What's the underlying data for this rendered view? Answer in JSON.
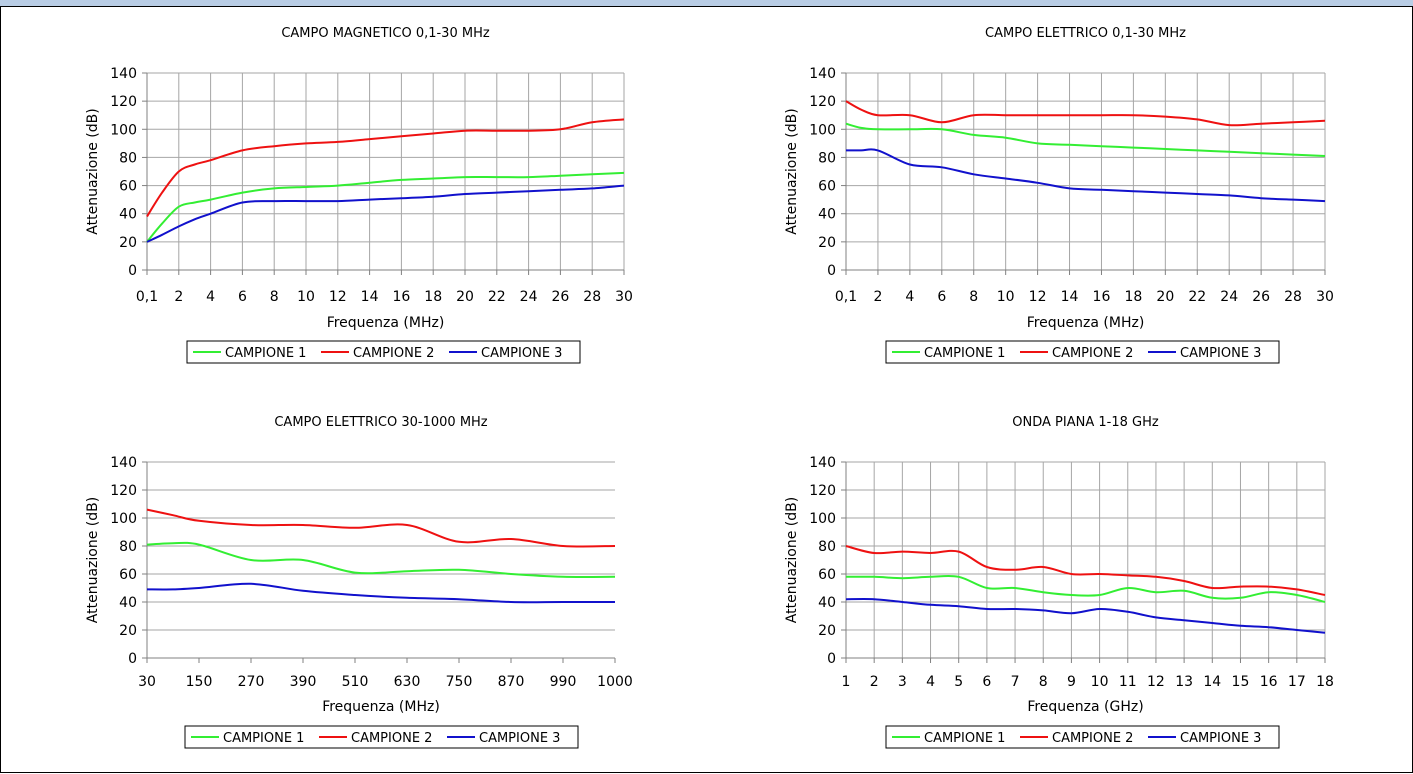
{
  "chart_data": [
    {
      "type": "line",
      "title": "CAMPO MAGNETICO 0,1-30 MHz",
      "xlabel": "Frequenza (MHz)",
      "ylabel": "Attenuazione (dB)",
      "categories": [
        "0,1",
        "2",
        "4",
        "6",
        "8",
        "10",
        "12",
        "14",
        "16",
        "18",
        "20",
        "22",
        "24",
        "26",
        "28",
        "30"
      ],
      "x": [
        0.1,
        1,
        2,
        3,
        4,
        6,
        8,
        10,
        12,
        14,
        16,
        18,
        20,
        22,
        24,
        26,
        28,
        30
      ],
      "ylim": [
        0,
        140
      ],
      "yticks": [
        0,
        20,
        40,
        60,
        80,
        100,
        120,
        140
      ],
      "grid": true,
      "legend": "bottom",
      "series": [
        {
          "name": "CAMPIONE 1",
          "color": "#33ee33",
          "values": [
            20,
            33,
            45,
            48,
            50,
            55,
            58,
            59,
            60,
            62,
            64,
            65,
            66,
            66,
            66,
            67,
            68,
            69
          ]
        },
        {
          "name": "CAMPIONE 2",
          "color": "#ee1111",
          "values": [
            38,
            55,
            70,
            75,
            78,
            85,
            88,
            90,
            91,
            93,
            95,
            97,
            99,
            99,
            99,
            100,
            105,
            107
          ]
        },
        {
          "name": "CAMPIONE 3",
          "color": "#1111cc",
          "values": [
            20,
            25,
            31,
            36,
            40,
            48,
            49,
            49,
            49,
            50,
            51,
            52,
            54,
            55,
            56,
            57,
            58,
            60
          ]
        }
      ]
    },
    {
      "type": "line",
      "title": "CAMPO ELETTRICO 0,1-30 MHz",
      "xlabel": "Frequenza (MHz)",
      "ylabel": "Attenuazione (dB)",
      "categories": [
        "0,1",
        "2",
        "4",
        "6",
        "8",
        "10",
        "12",
        "14",
        "16",
        "18",
        "20",
        "22",
        "24",
        "26",
        "28",
        "30"
      ],
      "x": [
        0.1,
        1,
        2,
        4,
        6,
        8,
        10,
        12,
        14,
        16,
        18,
        20,
        22,
        24,
        26,
        28,
        30
      ],
      "ylim": [
        0,
        140
      ],
      "yticks": [
        0,
        20,
        40,
        60,
        80,
        100,
        120,
        140
      ],
      "grid": true,
      "legend": "bottom",
      "series": [
        {
          "name": "CAMPIONE 1",
          "color": "#33ee33",
          "values": [
            104,
            101,
            100,
            100,
            100,
            96,
            94,
            90,
            89,
            88,
            87,
            86,
            85,
            84,
            83,
            82,
            81
          ]
        },
        {
          "name": "CAMPIONE 2",
          "color": "#ee1111",
          "values": [
            120,
            114,
            110,
            110,
            105,
            110,
            110,
            110,
            110,
            110,
            110,
            109,
            107,
            103,
            104,
            105,
            106
          ]
        },
        {
          "name": "CAMPIONE 3",
          "color": "#1111cc",
          "values": [
            85,
            85,
            85,
            75,
            73,
            68,
            65,
            62,
            58,
            57,
            56,
            55,
            54,
            53,
            51,
            50,
            49
          ]
        }
      ]
    },
    {
      "type": "line",
      "title": "CAMPO ELETTRICO 30-1000 MHz",
      "xlabel": "Frequenza (MHz)",
      "ylabel": "Attenuazione (dB)",
      "categories": [
        "30",
        "150",
        "270",
        "390",
        "510",
        "630",
        "750",
        "870",
        "990",
        "1000"
      ],
      "x": [
        30,
        90,
        150,
        270,
        390,
        510,
        630,
        750,
        870,
        990,
        1000
      ],
      "ylim": [
        0,
        140
      ],
      "yticks": [
        0,
        20,
        40,
        60,
        80,
        100,
        120,
        140
      ],
      "grid": false,
      "legend": "bottom",
      "series": [
        {
          "name": "CAMPIONE 1",
          "color": "#33ee33",
          "values": [
            81,
            82,
            81,
            70,
            70,
            61,
            62,
            63,
            60,
            58,
            58
          ]
        },
        {
          "name": "CAMPIONE 2",
          "color": "#ee1111",
          "values": [
            106,
            102,
            98,
            95,
            95,
            93,
            95,
            83,
            85,
            80,
            80
          ]
        },
        {
          "name": "CAMPIONE 3",
          "color": "#1111cc",
          "values": [
            49,
            49,
            50,
            53,
            48,
            45,
            43,
            42,
            40,
            40,
            40
          ]
        }
      ]
    },
    {
      "type": "line",
      "title": "ONDA PIANA 1-18 GHz",
      "xlabel": "Frequenza (GHz)",
      "ylabel": "Attenuazione (dB)",
      "categories": [
        "1",
        "2",
        "3",
        "4",
        "5",
        "6",
        "7",
        "8",
        "9",
        "10",
        "11",
        "12",
        "13",
        "14",
        "15",
        "16",
        "17",
        "18"
      ],
      "x": [
        1,
        2,
        3,
        4,
        5,
        6,
        7,
        8,
        9,
        10,
        11,
        12,
        13,
        14,
        15,
        16,
        17,
        18
      ],
      "ylim": [
        0,
        140
      ],
      "yticks": [
        0,
        20,
        40,
        60,
        80,
        100,
        120,
        140
      ],
      "grid": true,
      "legend": "bottom",
      "series": [
        {
          "name": "CAMPIONE 1",
          "color": "#33ee33",
          "values": [
            58,
            58,
            57,
            58,
            58,
            50,
            50,
            47,
            45,
            45,
            50,
            47,
            48,
            43,
            43,
            47,
            45,
            40
          ]
        },
        {
          "name": "CAMPIONE 2",
          "color": "#ee1111",
          "values": [
            80,
            75,
            76,
            75,
            76,
            65,
            63,
            65,
            60,
            60,
            59,
            58,
            55,
            50,
            51,
            51,
            49,
            45
          ]
        },
        {
          "name": "CAMPIONE 3",
          "color": "#1111cc",
          "values": [
            42,
            42,
            40,
            38,
            37,
            35,
            35,
            34,
            32,
            35,
            33,
            29,
            27,
            25,
            23,
            22,
            20,
            18
          ]
        }
      ]
    }
  ]
}
